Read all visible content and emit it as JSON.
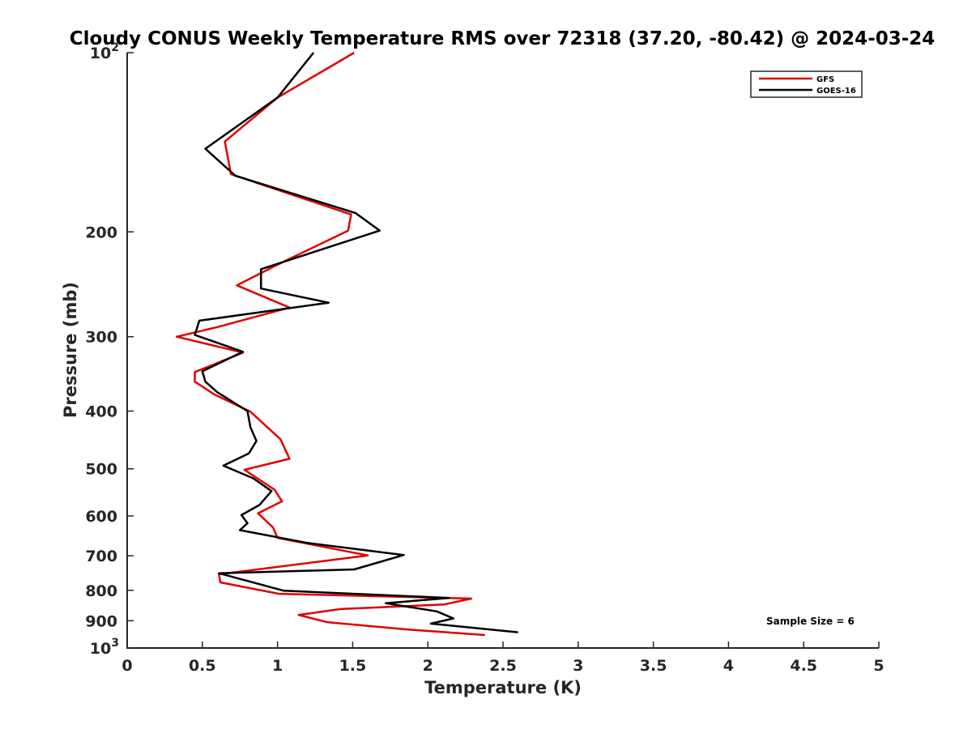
{
  "chart_data": {
    "type": "line",
    "title": "Cloudy CONUS Weekly Temperature RMS over 72318 (37.20, -80.42) @ 2024-03-24",
    "xlabel": "Temperature (K)",
    "ylabel": "Pressure (mb)",
    "xlim": [
      0,
      5
    ],
    "ylim": [
      100,
      1000
    ],
    "y_scale": "log",
    "y_reversed": true,
    "x_ticks": [
      {
        "value": 0,
        "label": "0"
      },
      {
        "value": 0.5,
        "label": "0.5"
      },
      {
        "value": 1,
        "label": "1"
      },
      {
        "value": 1.5,
        "label": "1.5"
      },
      {
        "value": 2,
        "label": "2"
      },
      {
        "value": 2.5,
        "label": "2.5"
      },
      {
        "value": 3,
        "label": "3"
      },
      {
        "value": 3.5,
        "label": "3.5"
      },
      {
        "value": 4,
        "label": "4"
      },
      {
        "value": 4.5,
        "label": "4.5"
      },
      {
        "value": 5,
        "label": "5"
      }
    ],
    "y_ticks": [
      {
        "value": 100,
        "base": "10",
        "exp": "2"
      },
      {
        "value": 200,
        "label": "200"
      },
      {
        "value": 300,
        "label": "300"
      },
      {
        "value": 400,
        "label": "400"
      },
      {
        "value": 500,
        "label": "500"
      },
      {
        "value": 600,
        "label": "600"
      },
      {
        "value": 700,
        "label": "700"
      },
      {
        "value": 800,
        "label": "800"
      },
      {
        "value": 900,
        "label": "900"
      },
      {
        "value": 1000,
        "base": "10",
        "exp": "3"
      }
    ],
    "grid": false,
    "legend_position": "top-right",
    "annotation": "Sample Size = 6",
    "series": [
      {
        "name": "GFS",
        "color": "#e00000",
        "points": [
          [
            1.51,
            100
          ],
          [
            1.0,
            119
          ],
          [
            0.65,
            141
          ],
          [
            0.69,
            160
          ],
          [
            1.49,
            187
          ],
          [
            1.47,
            199
          ],
          [
            1.0,
            227
          ],
          [
            0.73,
            246
          ],
          [
            1.08,
            268
          ],
          [
            0.6,
            289
          ],
          [
            0.33,
            300
          ],
          [
            0.77,
            319
          ],
          [
            0.45,
            344
          ],
          [
            0.45,
            357
          ],
          [
            0.58,
            375
          ],
          [
            0.82,
            401
          ],
          [
            1.02,
            446
          ],
          [
            1.08,
            481
          ],
          [
            0.78,
            502
          ],
          [
            0.98,
            542
          ],
          [
            1.03,
            567
          ],
          [
            0.87,
            594
          ],
          [
            0.97,
            627
          ],
          [
            1.0,
            653
          ],
          [
            1.6,
            699
          ],
          [
            0.61,
            752
          ],
          [
            0.62,
            776
          ],
          [
            1.01,
            811
          ],
          [
            2.29,
            826
          ],
          [
            2.11,
            845
          ],
          [
            1.42,
            860
          ],
          [
            1.14,
            880
          ],
          [
            1.33,
            905
          ],
          [
            1.87,
            931
          ],
          [
            2.38,
            951
          ]
        ]
      },
      {
        "name": "GOES-16",
        "color": "#000000",
        "points": [
          [
            1.24,
            100
          ],
          [
            1.0,
            119
          ],
          [
            0.52,
            145
          ],
          [
            0.72,
            161
          ],
          [
            1.52,
            186
          ],
          [
            1.68,
            199
          ],
          [
            0.89,
            231
          ],
          [
            0.89,
            249
          ],
          [
            1.34,
            263
          ],
          [
            0.48,
            282
          ],
          [
            0.45,
            298
          ],
          [
            0.77,
            318
          ],
          [
            0.5,
            343
          ],
          [
            0.52,
            357
          ],
          [
            0.6,
            372
          ],
          [
            0.8,
            400
          ],
          [
            0.82,
            426
          ],
          [
            0.86,
            449
          ],
          [
            0.81,
            471
          ],
          [
            0.64,
            494
          ],
          [
            0.84,
            519
          ],
          [
            0.96,
            545
          ],
          [
            0.88,
            575
          ],
          [
            0.76,
            598
          ],
          [
            0.8,
            617
          ],
          [
            0.75,
            634
          ],
          [
            1.2,
            666
          ],
          [
            1.84,
            698
          ],
          [
            1.51,
            738
          ],
          [
            0.61,
            749
          ],
          [
            1.04,
            801
          ],
          [
            2.14,
            824
          ],
          [
            1.72,
            841
          ],
          [
            2.06,
            868
          ],
          [
            2.17,
            892
          ],
          [
            2.02,
            910
          ],
          [
            2.6,
            941
          ]
        ]
      }
    ]
  }
}
